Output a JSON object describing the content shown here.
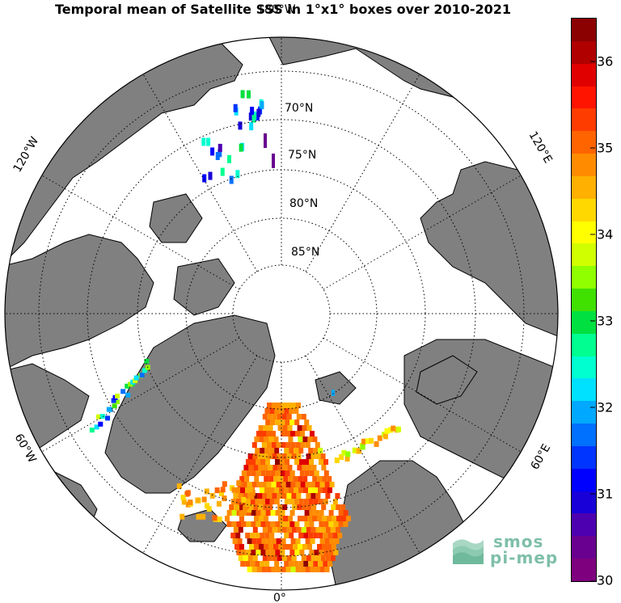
{
  "title": "Temporal mean of Satellite SSS in 1°x1° boxes over 2010-2021",
  "map": {
    "projection": "north-polar-stereographic",
    "latitude_labels": [
      "70°N",
      "75°N",
      "80°N",
      "85°N"
    ],
    "longitude_labels": {
      "top": "180°W",
      "bottom": "0°",
      "upper_left": "120°W",
      "lower_left": "60°W",
      "upper_right": "120°E",
      "lower_right": "60°E"
    },
    "land_color": "#808080",
    "ocean_color": "#ffffff"
  },
  "colorbar": {
    "min": 30,
    "max": 36.5,
    "tick_labels": [
      "30",
      "31",
      "32",
      "33",
      "34",
      "35",
      "36"
    ],
    "colors": [
      "#7f007f",
      "#6a0090",
      "#4d00b0",
      "#1800d8",
      "#0000ff",
      "#0035ff",
      "#0070ff",
      "#00a8ff",
      "#00e0ff",
      "#00ffd0",
      "#00ff90",
      "#00e040",
      "#40e000",
      "#90ff00",
      "#d0ff00",
      "#ffff00",
      "#ffd800",
      "#ffb000",
      "#ff8c00",
      "#ff6400",
      "#ff3c00",
      "#ff1400",
      "#e00000",
      "#b00000",
      "#8b0000"
    ]
  },
  "logo": {
    "line1": "smos",
    "line2": "pi-mep"
  }
}
